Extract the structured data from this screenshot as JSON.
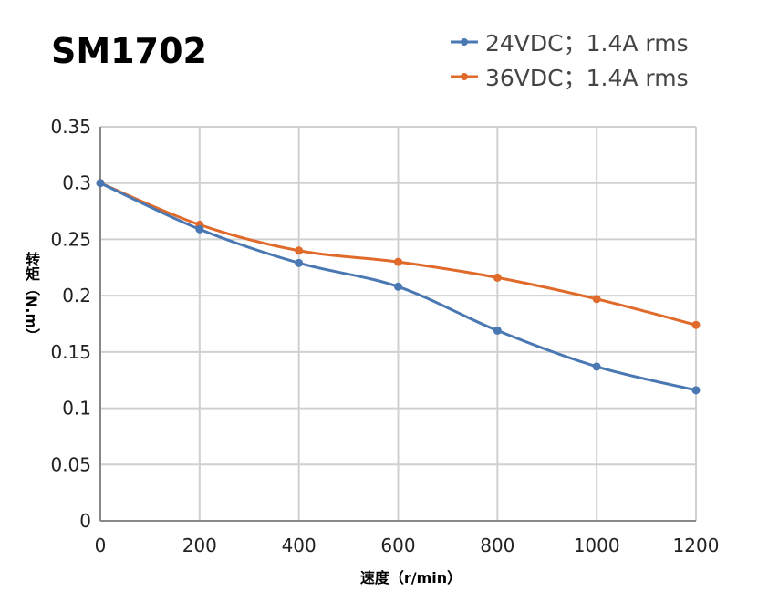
{
  "chart_data": {
    "type": "line",
    "title": "SM1702",
    "xlabel": "速度（r/min）",
    "ylabel": "转矩（N.m）",
    "x": [
      0,
      200,
      400,
      600,
      800,
      1000,
      1200
    ],
    "xlim": [
      0,
      1200
    ],
    "ylim": [
      0,
      0.35
    ],
    "xticks": [
      "0",
      "200",
      "400",
      "600",
      "800",
      "1000",
      "1200"
    ],
    "yticks": [
      "0",
      "0.05",
      "0.1",
      "0.15",
      "0.2",
      "0.25",
      "0.3",
      "0.35"
    ],
    "grid": true,
    "legend_position": "top-right",
    "series": [
      {
        "name": "24VDC；1.4A rms",
        "color": "#4a78b3",
        "values": [
          0.3,
          0.259,
          0.229,
          0.208,
          0.169,
          0.137,
          0.116
        ]
      },
      {
        "name": "36VDC；1.4A rms",
        "color": "#e06a2a",
        "values": [
          0.3,
          0.263,
          0.24,
          0.23,
          0.216,
          0.197,
          0.174
        ]
      }
    ]
  }
}
